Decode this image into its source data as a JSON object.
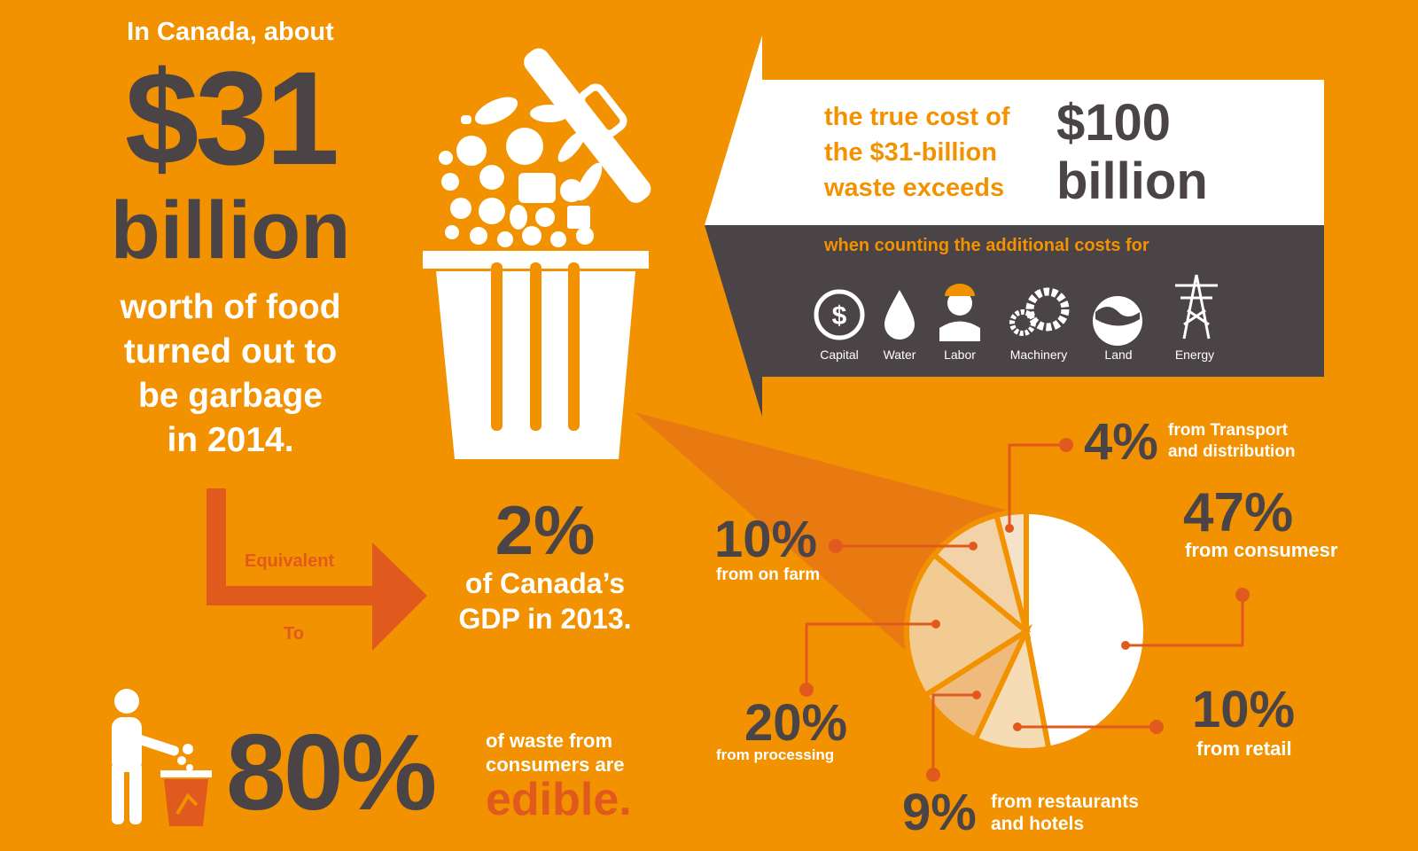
{
  "headline": {
    "intro": "In Canada, about",
    "amount": "$31",
    "unit": "billion",
    "line1": "worth of food",
    "line2": "turned out to",
    "line3": "be garbage",
    "line4": "in 2014."
  },
  "equivalent": {
    "label_top": "Equivalent",
    "label_bottom": "To",
    "value": "2%",
    "desc1": "of Canada’s",
    "desc2": "GDP in 2013."
  },
  "true_cost": {
    "line1": "the true cost of",
    "line2": "the $31-billion",
    "line3": "waste exceeds",
    "amount": "$100",
    "unit": "billion",
    "subtitle": "when counting the additional costs for",
    "costs": [
      {
        "label": "Capital",
        "icon": "dollar-coin-icon"
      },
      {
        "label": "Water",
        "icon": "water-drop-icon"
      },
      {
        "label": "Labor",
        "icon": "worker-icon"
      },
      {
        "label": "Machinery",
        "icon": "gears-icon"
      },
      {
        "label": "Land",
        "icon": "globe-land-icon"
      },
      {
        "label": "Energy",
        "icon": "power-tower-icon"
      }
    ]
  },
  "edible": {
    "value": "80%",
    "line1": "of waste from",
    "line2": "consumers are",
    "highlight": "edible."
  },
  "colors": {
    "background": "#f39200",
    "dark": "#4a4446",
    "accent_red": "#e05a1e",
    "white": "#ffffff"
  },
  "chart_data": {
    "type": "pie",
    "unit": "%",
    "slices": [
      {
        "value": 47,
        "label": "47%",
        "desc": "from consumesr",
        "color": "#ffffff"
      },
      {
        "value": 10,
        "label": "10%",
        "desc": "from retail",
        "color": "#f6dcb5"
      },
      {
        "value": 9,
        "label": "9%",
        "desc": "from restaurants and hotels",
        "desc_lines": [
          "from restaurants",
          "and hotels"
        ],
        "color": "#eebb7c"
      },
      {
        "value": 20,
        "label": "20%",
        "desc": "from processing",
        "color": "#f2cb93"
      },
      {
        "value": 10,
        "label": "10%",
        "desc": "from on farm",
        "color": "#f2d2a6"
      },
      {
        "value": 4,
        "label": "4%",
        "desc": "from Transport and distribution",
        "desc_lines": [
          "from Transport",
          "and distribution"
        ],
        "color": "#f4e2cb"
      }
    ]
  }
}
